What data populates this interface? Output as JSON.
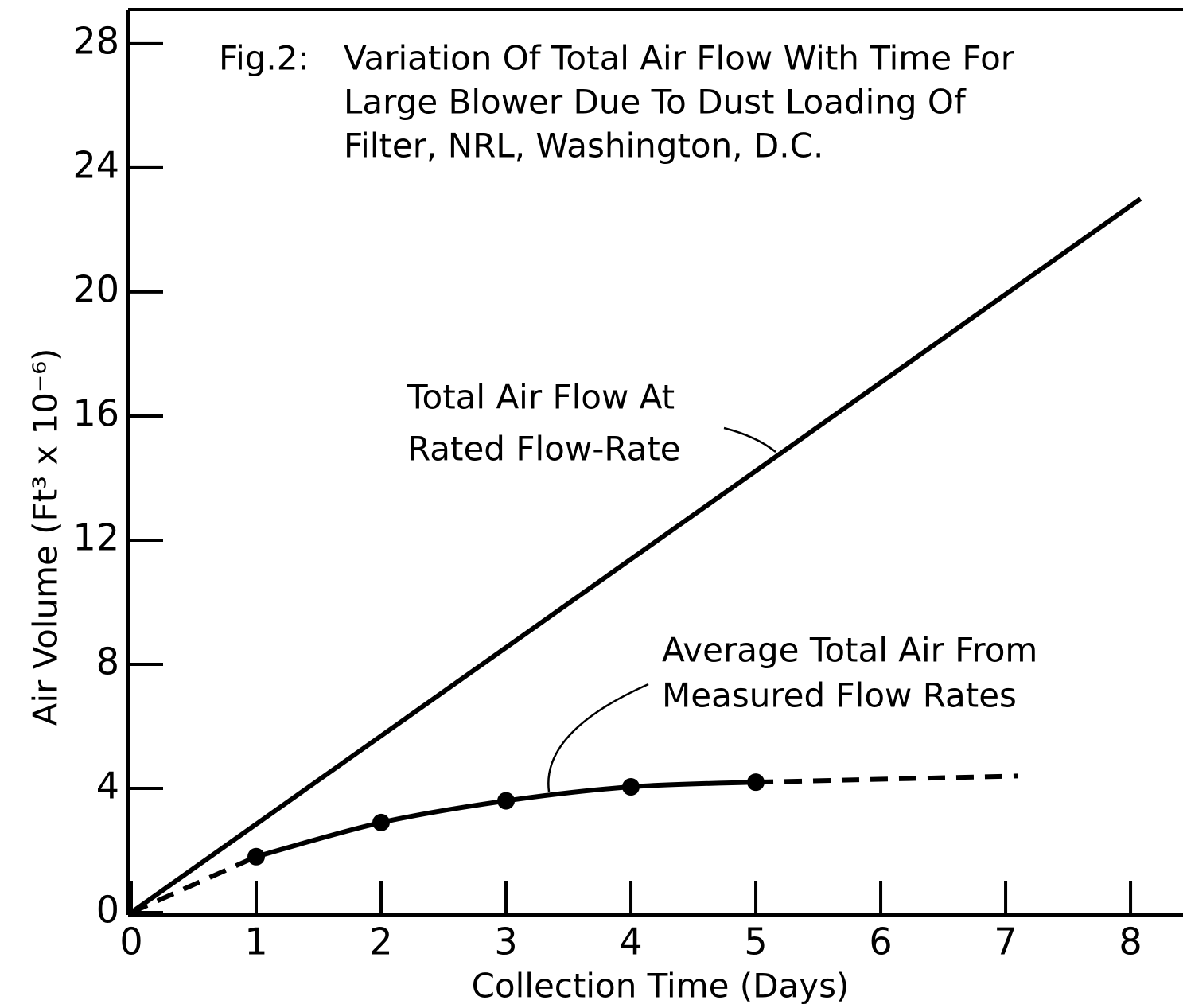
{
  "chart_data": {
    "type": "line",
    "figure_label": "Fig.2:",
    "title": [
      "Variation Of Total Air Flow With Time For",
      "Large Blower Due To Dust Loading Of",
      "Filter, NRL, Washington, D.C."
    ],
    "xlabel": "Collection Time (Days)",
    "ylabel": "Air Volume (Ft³ x 10⁻⁶)",
    "xlim": [
      0,
      8.42
    ],
    "ylim": [
      0,
      29.1
    ],
    "xticks": [
      0,
      1,
      2,
      3,
      4,
      5,
      6,
      7,
      8
    ],
    "yticks": [
      0,
      4,
      8,
      12,
      16,
      20,
      24,
      28
    ],
    "grid": false,
    "series": [
      {
        "color": "#000000",
        "dashed": false,
        "markers": false,
        "smooth": false,
        "x": [
          0,
          8.08
        ],
        "values": [
          0,
          23
        ]
      },
      {
        "color": "#000000",
        "dashed": false,
        "markers": true,
        "smooth": true,
        "x": [
          1,
          2,
          3,
          4,
          5
        ],
        "values": [
          1.8,
          2.9,
          3.6,
          4.05,
          4.2
        ]
      },
      {
        "color": "#000000",
        "dashed": true,
        "markers": false,
        "smooth": false,
        "x": [
          0,
          1
        ],
        "values": [
          0,
          1.8
        ]
      },
      {
        "color": "#000000",
        "dashed": true,
        "markers": false,
        "smooth": false,
        "x": [
          5,
          7.1
        ],
        "values": [
          4.2,
          4.4
        ]
      }
    ],
    "annotations": [
      {
        "lines": [
          "Total Air Flow At",
          "Rated Flow-Rate"
        ]
      },
      {
        "lines": [
          "Average Total Air From",
          "Measured Flow Rates"
        ]
      }
    ]
  }
}
